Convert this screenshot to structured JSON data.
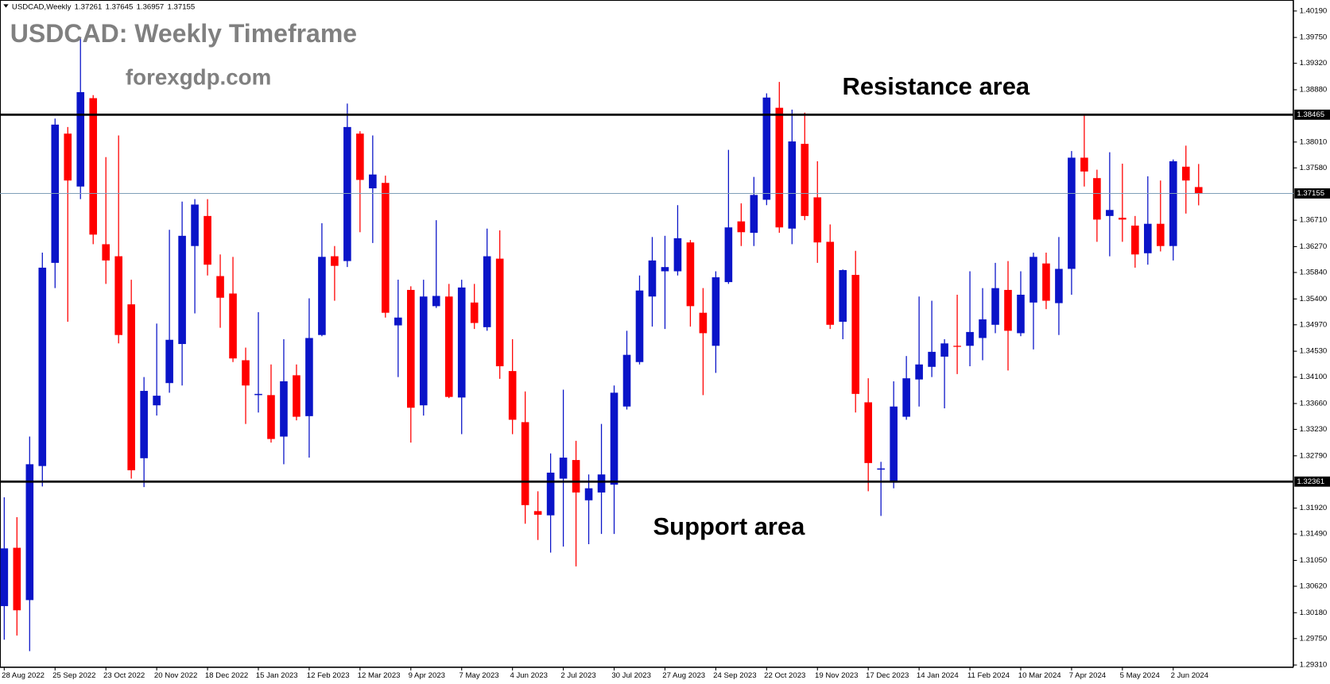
{
  "chart_data": {
    "type": "candlestick",
    "symbol_label": "USDCAD,Weekly",
    "title": "USDCAD: Weekly Timeframe",
    "subtitle": "forexgdp.com",
    "resistance_label": "Resistance area",
    "resistance": 1.38465,
    "support_label": "Support area",
    "support": 1.32361,
    "up_color": "#0a14c8",
    "down_color": "#ff0000",
    "level_color": "#000000",
    "price_line_color": "#7f9fb8",
    "categories": [
      "28 Aug 2022",
      null,
      null,
      null,
      "25 Sep 2022",
      null,
      null,
      null,
      "23 Oct 2022",
      null,
      null,
      null,
      "20 Nov 2022",
      null,
      null,
      null,
      "18 Dec 2022",
      null,
      null,
      null,
      "15 Jan 2023",
      null,
      null,
      null,
      "12 Feb 2023",
      null,
      null,
      null,
      "12 Mar 2023",
      null,
      null,
      null,
      "9 Apr 2023",
      null,
      null,
      null,
      "7 May 2023",
      null,
      null,
      null,
      "4 Jun 2023",
      null,
      null,
      null,
      "2 Jul 2023",
      null,
      null,
      null,
      "30 Jul 2023",
      null,
      null,
      null,
      "27 Aug 2023",
      null,
      null,
      null,
      "24 Sep 2023",
      null,
      null,
      null,
      "22 Oct 2023",
      null,
      null,
      null,
      "19 Nov 2023",
      null,
      null,
      null,
      "17 Dec 2023",
      null,
      null,
      null,
      "14 Jan 2024",
      null,
      null,
      null,
      "11 Feb 2024",
      null,
      null,
      null,
      "10 Mar 2024",
      null,
      null,
      null,
      "7 Apr 2024",
      null,
      null,
      null,
      "5 May 2024",
      null,
      null,
      null,
      "2 Jun 2024",
      null,
      null
    ],
    "open": [
      1.3029,
      1.3126,
      1.3039,
      1.3262,
      1.36,
      1.3815,
      1.3727,
      1.3874,
      1.3631,
      1.3611,
      1.3531,
      1.3275,
      1.3363,
      1.34,
      1.3465,
      1.3628,
      1.3678,
      1.3578,
      1.3549,
      1.3438,
      1.338,
      1.338,
      1.3311,
      1.3413,
      1.3345,
      1.348,
      1.3611,
      1.3603,
      1.3815,
      1.3724,
      1.3733,
      1.3496,
      1.3555,
      1.3363,
      1.3528,
      1.3544,
      1.3376,
      1.3534,
      1.3493,
      1.3607,
      1.342,
      1.3335,
      1.3187,
      1.318,
      1.3241,
      1.3272,
      1.3205,
      1.3218,
      1.3231,
      1.3361,
      1.3435,
      1.3544,
      1.3586,
      1.3586,
      1.3634,
      1.3517,
      1.3462,
      1.3568,
      1.3669,
      1.365,
      1.3705,
      1.3858,
      1.3657,
      1.3798,
      1.3709,
      1.3635,
      1.3502,
      1.358,
      1.3368,
      1.3256,
      1.3235,
      1.3344,
      1.3406,
      1.3427,
      1.3444,
      1.3462,
      1.3462,
      1.3475,
      1.3497,
      1.3555,
      1.3483,
      1.3534,
      1.3599,
      1.3533,
      1.359,
      1.3775,
      1.3741,
      1.3678,
      1.3675,
      1.3662,
      1.3616,
      1.3665,
      1.3628,
      1.376,
      1.37261
    ],
    "high": [
      1.321,
      1.3177,
      1.3311,
      1.3617,
      1.384,
      1.3826,
      1.3974,
      1.3879,
      1.3776,
      1.3812,
      1.3572,
      1.341,
      1.3499,
      1.3655,
      1.3702,
      1.3706,
      1.3706,
      1.3614,
      1.361,
      1.3459,
      1.3518,
      1.3431,
      1.3473,
      1.3431,
      1.3541,
      1.3666,
      1.3628,
      1.3865,
      1.3819,
      1.3812,
      1.3745,
      1.3572,
      1.3561,
      1.3572,
      1.3671,
      1.3565,
      1.3572,
      1.3565,
      1.3657,
      1.3654,
      1.3473,
      1.3386,
      1.322,
      1.3283,
      1.3389,
      1.3304,
      1.3248,
      1.3332,
      1.3396,
      1.3487,
      1.3579,
      1.3643,
      1.3645,
      1.3696,
      1.3638,
      1.3558,
      1.3586,
      1.3788,
      1.3699,
      1.3743,
      1.3882,
      1.3901,
      1.3855,
      1.385,
      1.3769,
      1.3664,
      1.3589,
      1.362,
      1.3408,
      1.3269,
      1.3403,
      1.3445,
      1.3544,
      1.3537,
      1.3473,
      1.3547,
      1.3586,
      1.3558,
      1.36,
      1.3603,
      1.3586,
      1.3617,
      1.3617,
      1.3643,
      1.3786,
      1.3847,
      1.3755,
      1.3784,
      1.3765,
      1.3678,
      1.3744,
      1.3737,
      1.3772,
      1.3795,
      1.37645
    ],
    "low": [
      1.2973,
      1.298,
      1.2954,
      1.3228,
      1.3558,
      1.3502,
      1.3706,
      1.3631,
      1.3565,
      1.3466,
      1.3241,
      1.3227,
      1.3346,
      1.3384,
      1.3396,
      1.3516,
      1.3579,
      1.3492,
      1.3435,
      1.3332,
      1.3351,
      1.3301,
      1.3265,
      1.3338,
      1.3276,
      1.3478,
      1.3537,
      1.3593,
      1.3651,
      1.3633,
      1.3509,
      1.341,
      1.3301,
      1.3346,
      1.3525,
      1.3375,
      1.3315,
      1.349,
      1.3487,
      1.3407,
      1.3315,
      1.3166,
      1.3139,
      1.3118,
      1.3128,
      1.3095,
      1.3132,
      1.3149,
      1.3149,
      1.3356,
      1.3431,
      1.3494,
      1.349,
      1.3579,
      1.3494,
      1.338,
      1.3417,
      1.3565,
      1.3628,
      1.3628,
      1.3696,
      1.365,
      1.3631,
      1.3671,
      1.36,
      1.349,
      1.3473,
      1.3351,
      1.322,
      1.3179,
      1.3225,
      1.3339,
      1.3361,
      1.341,
      1.3358,
      1.3415,
      1.3428,
      1.3438,
      1.3483,
      1.3421,
      1.3478,
      1.3456,
      1.3523,
      1.348,
      1.3547,
      1.3727,
      1.3635,
      1.3611,
      1.3635,
      1.3592,
      1.3597,
      1.3619,
      1.3604,
      1.3682,
      1.36957
    ],
    "close": [
      1.3125,
      1.3022,
      1.3265,
      1.3592,
      1.383,
      1.3737,
      1.3884,
      1.3647,
      1.3604,
      1.348,
      1.3255,
      1.3387,
      1.3379,
      1.3472,
      1.3645,
      1.3697,
      1.3597,
      1.3542,
      1.3441,
      1.3396,
      1.3382,
      1.3307,
      1.3403,
      1.3344,
      1.3475,
      1.361,
      1.3595,
      1.3826,
      1.3738,
      1.3747,
      1.3517,
      1.3509,
      1.3359,
      1.3544,
      1.3545,
      1.3377,
      1.3559,
      1.35,
      1.3611,
      1.3428,
      1.3339,
      1.3197,
      1.3181,
      1.3251,
      1.3276,
      1.3218,
      1.3225,
      1.3248,
      1.3384,
      1.3447,
      1.3554,
      1.3604,
      1.3593,
      1.3641,
      1.3528,
      1.3483,
      1.3576,
      1.3659,
      1.3651,
      1.3713,
      1.3875,
      1.3659,
      1.3802,
      1.3678,
      1.3634,
      1.3497,
      1.3588,
      1.3382,
      1.3267,
      1.3258,
      1.3361,
      1.3408,
      1.3431,
      1.3452,
      1.3466,
      1.3461,
      1.3485,
      1.3506,
      1.3558,
      1.3487,
      1.3547,
      1.361,
      1.3537,
      1.359,
      1.3775,
      1.3752,
      1.3672,
      1.3688,
      1.3672,
      1.3614,
      1.3665,
      1.3628,
      1.3769,
      1.3737,
      1.37155
    ],
    "ylim": [
      1.29276,
      1.40373
    ],
    "yticks": [
      {
        "value": 1.4019,
        "label": "1.40190"
      },
      {
        "value": 1.3975,
        "label": "1.39750"
      },
      {
        "value": 1.3932,
        "label": "1.39320"
      },
      {
        "value": 1.3888,
        "label": "1.38880"
      },
      {
        "value": 1.3801,
        "label": "1.38010"
      },
      {
        "value": 1.3758,
        "label": "1.37580"
      },
      {
        "value": 1.3671,
        "label": "1.36710"
      },
      {
        "value": 1.3627,
        "label": "1.36270"
      },
      {
        "value": 1.3584,
        "label": "1.35840"
      },
      {
        "value": 1.354,
        "label": "1.35400"
      },
      {
        "value": 1.3497,
        "label": "1.34970"
      },
      {
        "value": 1.3453,
        "label": "1.34530"
      },
      {
        "value": 1.341,
        "label": "1.34100"
      },
      {
        "value": 1.3366,
        "label": "1.33660"
      },
      {
        "value": 1.3323,
        "label": "1.33230"
      },
      {
        "value": 1.3279,
        "label": "1.32790"
      },
      {
        "value": 1.3192,
        "label": "1.31920"
      },
      {
        "value": 1.3149,
        "label": "1.31490"
      },
      {
        "value": 1.3105,
        "label": "1.31050"
      },
      {
        "value": 1.3062,
        "label": "1.30620"
      },
      {
        "value": 1.3018,
        "label": "1.30180"
      },
      {
        "value": 1.2975,
        "label": "1.29750"
      },
      {
        "value": 1.2931,
        "label": "1.29310"
      }
    ]
  }
}
